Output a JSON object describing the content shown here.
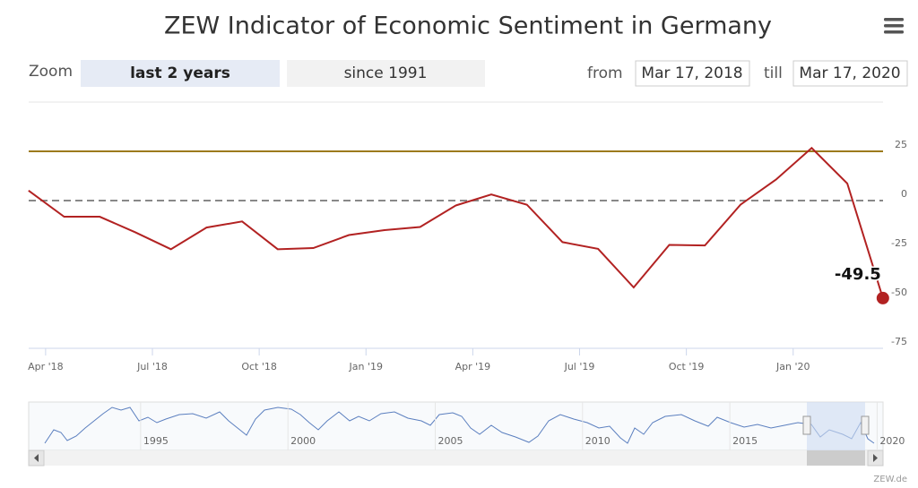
{
  "title": "ZEW Indicator of Economic Sentiment in Germany",
  "zoom": {
    "label": "Zoom",
    "buttons": [
      "last 2 years",
      "since 1991"
    ]
  },
  "range": {
    "from_label": "from",
    "from": "Mar 17, 2018",
    "till_label": "till",
    "till": "Mar 17, 2020"
  },
  "credit": "ZEW.de",
  "chart_data": {
    "type": "line",
    "color": "#b22222",
    "x": [
      "2018-03",
      "2018-04",
      "2018-05",
      "2018-06",
      "2018-07",
      "2018-08",
      "2018-09",
      "2018-10",
      "2018-11",
      "2018-12",
      "2019-01",
      "2019-02",
      "2019-03",
      "2019-04",
      "2019-05",
      "2019-06",
      "2019-07",
      "2019-08",
      "2019-09",
      "2019-10",
      "2019-11",
      "2019-12",
      "2020-01",
      "2020-02",
      "2020-03"
    ],
    "values": [
      5.1,
      -8.2,
      -8.2,
      -16.1,
      -24.7,
      -13.7,
      -10.6,
      -24.7,
      -24.1,
      -17.5,
      -15.0,
      -13.4,
      -2.5,
      3.1,
      -2.1,
      -21.1,
      -24.5,
      -44.1,
      -22.5,
      -22.8,
      -2.1,
      10.7,
      26.7,
      8.7,
      -49.5
    ],
    "xlim": [
      "2018-03-17",
      "2020-03-17"
    ],
    "xticks": [
      {
        "value": "2018-04-01",
        "label": "Apr '18"
      },
      {
        "value": "2018-07-01",
        "label": "Jul '18"
      },
      {
        "value": "2018-10-01",
        "label": "Oct '18"
      },
      {
        "value": "2019-01-01",
        "label": "Jan '19"
      },
      {
        "value": "2019-04-01",
        "label": "Apr '19"
      },
      {
        "value": "2019-07-01",
        "label": "Jul '19"
      },
      {
        "value": "2019-10-01",
        "label": "Oct '19"
      },
      {
        "value": "2020-01-01",
        "label": "Jan '20"
      }
    ],
    "ylim": [
      -75,
      50
    ],
    "yticks": [
      -75,
      -50,
      -25,
      0,
      25
    ],
    "plot_lines": [
      {
        "value": 25,
        "color": "#9c7a1c",
        "dash": false
      },
      {
        "value": 0,
        "color": "#888888",
        "dash": true
      }
    ]
  },
  "navigator": {
    "xticks": [
      1995,
      2000,
      2005,
      2010,
      2015,
      2020
    ]
  }
}
